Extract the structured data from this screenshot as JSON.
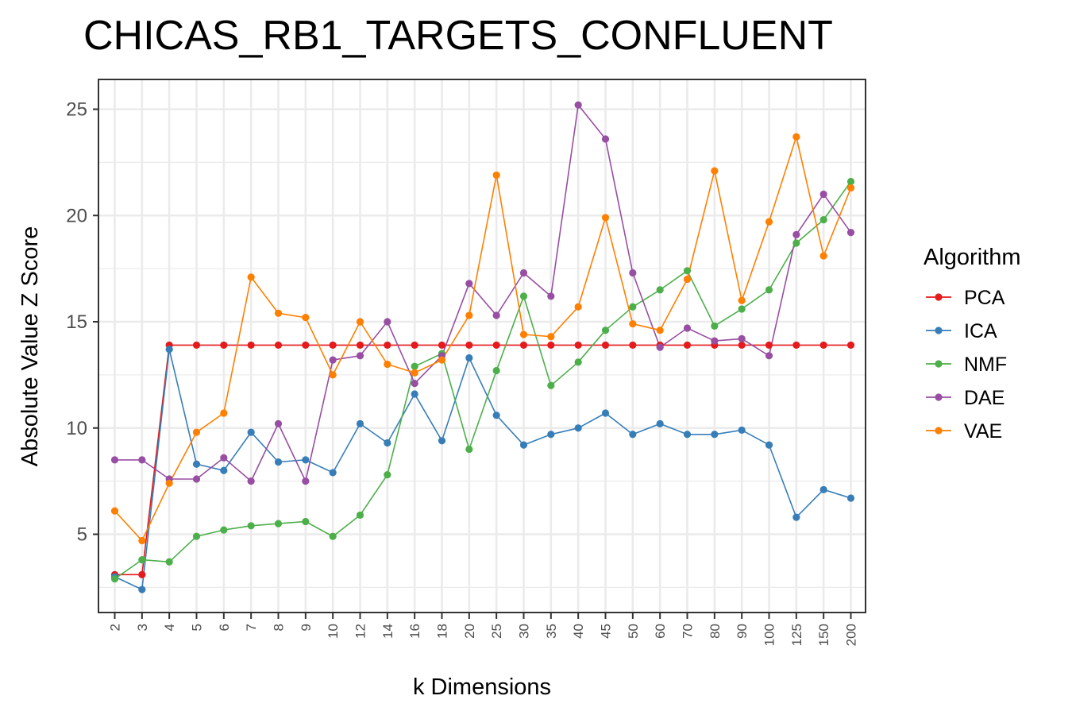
{
  "chart_data": {
    "type": "line",
    "title": "CHICAS_RB1_TARGETS_CONFLUENT",
    "xlabel": "k Dimensions",
    "ylabel": "Absolute Value Z Score",
    "x_scale": "categorical",
    "categories": [
      "2",
      "3",
      "4",
      "5",
      "6",
      "7",
      "8",
      "9",
      "10",
      "12",
      "14",
      "16",
      "18",
      "20",
      "25",
      "30",
      "35",
      "40",
      "45",
      "50",
      "60",
      "70",
      "80",
      "90",
      "100",
      "125",
      "150",
      "200"
    ],
    "yticks": [
      5,
      10,
      15,
      20,
      25
    ],
    "ylim": [
      1.4,
      26.3
    ],
    "grid": true,
    "legend": {
      "title": "Algorithm",
      "position": "right"
    },
    "series": [
      {
        "name": "PCA",
        "color": "#e41a1c",
        "values": [
          3.1,
          3.1,
          13.9,
          13.9,
          13.9,
          13.9,
          13.9,
          13.9,
          13.9,
          13.9,
          13.9,
          13.9,
          13.9,
          13.9,
          13.9,
          13.9,
          13.9,
          13.9,
          13.9,
          13.9,
          13.9,
          13.9,
          13.9,
          13.9,
          13.9,
          13.9,
          13.9,
          13.9
        ]
      },
      {
        "name": "ICA",
        "color": "#377eb8",
        "values": [
          3.0,
          2.4,
          13.7,
          8.3,
          8.0,
          9.8,
          8.4,
          8.5,
          7.9,
          10.2,
          9.3,
          11.6,
          9.4,
          13.3,
          10.6,
          9.2,
          9.7,
          10.0,
          10.7,
          9.7,
          10.2,
          9.7,
          9.7,
          9.9,
          9.2,
          5.8,
          7.1,
          6.7
        ]
      },
      {
        "name": "NMF",
        "color": "#4daf4a",
        "values": [
          2.9,
          3.8,
          3.7,
          4.9,
          5.2,
          5.4,
          5.5,
          5.6,
          4.9,
          5.9,
          7.8,
          12.9,
          13.5,
          9.0,
          12.7,
          16.2,
          12.0,
          13.1,
          14.6,
          15.7,
          16.5,
          17.4,
          14.8,
          15.6,
          16.5,
          18.7,
          19.8,
          21.6
        ]
      },
      {
        "name": "DAE",
        "color": "#984ea3",
        "values": [
          8.5,
          8.5,
          7.6,
          7.6,
          8.6,
          7.5,
          10.2,
          7.5,
          13.2,
          13.4,
          15.0,
          12.1,
          13.4,
          16.8,
          15.3,
          17.3,
          16.2,
          25.2,
          23.6,
          17.3,
          13.8,
          14.7,
          14.1,
          14.2,
          13.4,
          19.1,
          21.0,
          19.2
        ]
      },
      {
        "name": "VAE",
        "color": "#ff7f00",
        "values": [
          6.1,
          4.7,
          7.4,
          9.8,
          10.7,
          17.1,
          15.4,
          15.2,
          12.5,
          15.0,
          13.0,
          12.6,
          13.2,
          15.3,
          21.9,
          14.4,
          14.3,
          15.7,
          19.9,
          14.9,
          14.6,
          17.0,
          22.1,
          16.0,
          19.7,
          23.7,
          18.1,
          21.3
        ]
      }
    ]
  }
}
